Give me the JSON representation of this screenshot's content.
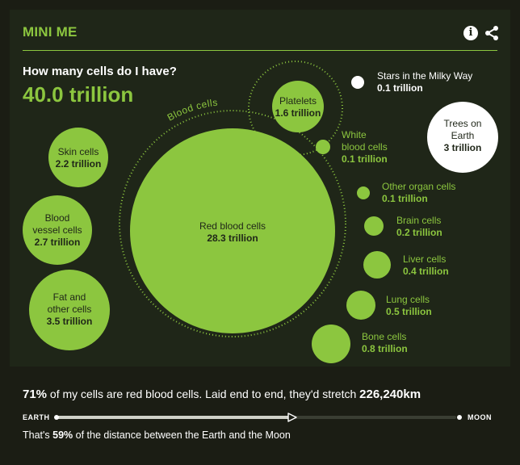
{
  "header": {
    "title": "MINI ME",
    "info_icon": "info-icon",
    "share_icon": "share-icon"
  },
  "summary": {
    "question": "How many cells do I have?",
    "total": "40.0 trillion"
  },
  "colors": {
    "accent": "#8cc63f",
    "panel": "#1f2618",
    "background": "#1b1d14",
    "white": "#ffffff"
  },
  "cells": {
    "group_label": "Blood cells",
    "red_blood": {
      "label": "Red blood cells",
      "value": "28.3 trillion"
    },
    "platelets": {
      "label": "Platelets",
      "value": "1.6 trillion"
    },
    "white_blood": {
      "label_1": "White",
      "label_2": "blood cells",
      "value": "0.1 trillion"
    },
    "skin": {
      "label": "Skin cells",
      "value": "2.2 trillion"
    },
    "vessel": {
      "label_1": "Blood",
      "label_2": "vessel cells",
      "value": "2.7 trillion"
    },
    "fat": {
      "label_1": "Fat and",
      "label_2": "other cells",
      "value": "3.5 trillion"
    },
    "other_organ": {
      "label": "Other organ cells",
      "value": "0.1 trillion"
    },
    "brain": {
      "label": "Brain cells",
      "value": "0.2 trillion"
    },
    "liver": {
      "label": "Liver cells",
      "value": "0.4 trillion"
    },
    "lung": {
      "label": "Lung cells",
      "value": "0.5 trillion"
    },
    "bone": {
      "label": "Bone cells",
      "value": "0.8 trillion"
    }
  },
  "comparisons": {
    "stars": {
      "label": "Stars in the Milky Way",
      "value": "0.1 trillion"
    },
    "trees": {
      "label_1": "Trees on",
      "label_2": "Earth",
      "value": "3 trillion"
    }
  },
  "footer": {
    "stat_pct": "71%",
    "stat_text": " of my cells are red blood cells. Laid end to end, they'd stretch ",
    "stat_dist": "226,240km",
    "left_label": "EARTH",
    "right_label": "MOON",
    "progress_fraction": 0.59,
    "dist_pre": "That's ",
    "dist_pct": "59%",
    "dist_post": " of the distance between the Earth and the Moon"
  }
}
